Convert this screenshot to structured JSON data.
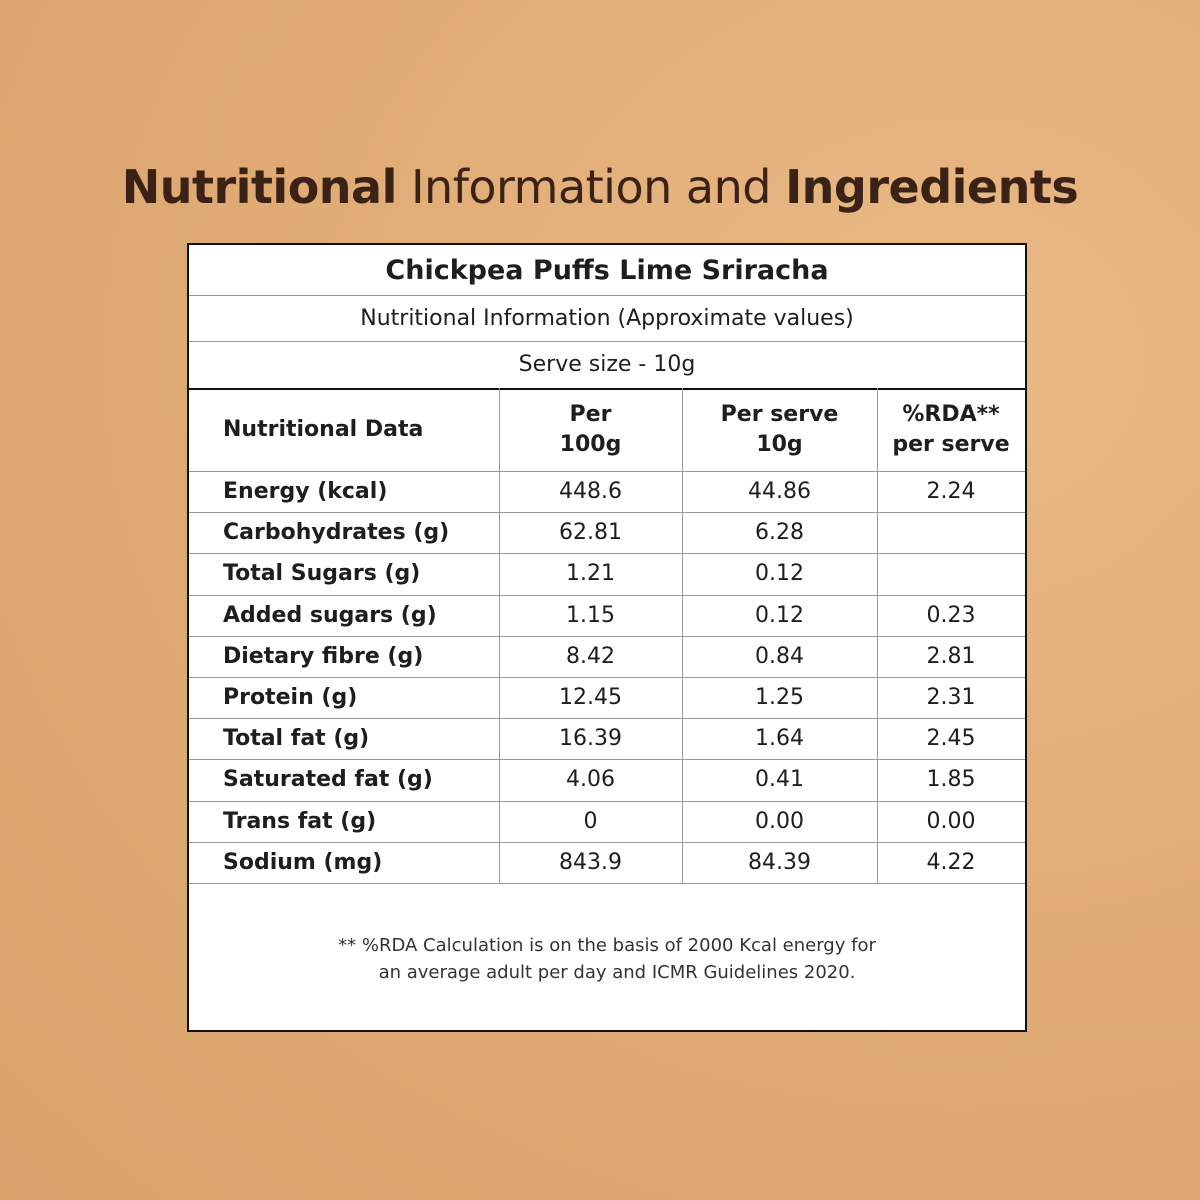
{
  "header": {
    "title": {
      "bold_start": "Nutritional",
      "regular": "Information and",
      "bold_end": "Ingredients"
    }
  },
  "table": {
    "product": "Chickpea Puffs Lime Sriracha",
    "subtitle": "Nutritional Information (Approximate values)",
    "serve_size": "Serve size - 10g",
    "columns": [
      [
        "Nutritional Data"
      ],
      [
        "Per",
        "100g"
      ],
      [
        "Per serve",
        "10g"
      ],
      [
        "%RDA**",
        "per serve"
      ]
    ],
    "rows": [
      [
        "Energy (kcal)",
        "448.6",
        "44.86",
        "2.24"
      ],
      [
        "Carbohydrates (g)",
        "62.81",
        "6.28",
        null
      ],
      [
        "Total Sugars (g)",
        "1.21",
        "0.12",
        null
      ],
      [
        "Added sugars (g)",
        "1.15",
        "0.12",
        "0.23"
      ],
      [
        "Dietary fibre (g)",
        "8.42",
        "0.84",
        "2.81"
      ],
      [
        "Protein (g)",
        "12.45",
        "1.25",
        "2.31"
      ],
      [
        "Total fat (g)",
        "16.39",
        "1.64",
        "2.45"
      ],
      [
        "Saturated fat (g)",
        "4.06",
        "0.41",
        "1.85"
      ],
      [
        "Trans fat (g)",
        "0",
        "0.00",
        "0.00"
      ],
      [
        "Sodium (mg)",
        "843.9",
        "84.39",
        "4.22"
      ]
    ],
    "footnote": [
      "** %RDA Calculation is on the basis of 2000 Kcal energy for",
      "an average adult per day and ICMR Guidelines 2020."
    ]
  }
}
